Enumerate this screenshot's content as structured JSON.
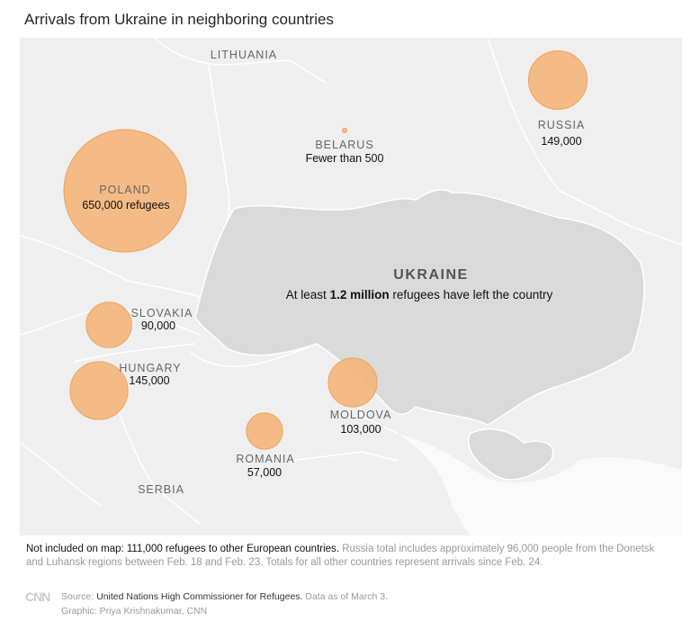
{
  "title": "Arrivals from Ukraine in neighboring countries",
  "map": {
    "colors": {
      "land": "#efefef",
      "ukraine": "#dadada",
      "border": "#ffffff",
      "bubble_fill": "#f5b57a",
      "bubble_stroke": "#eea25c"
    },
    "other_labels": {
      "lithuania": "LITHUANIA",
      "serbia": "SERBIA"
    },
    "ukraine": {
      "name": "UKRAINE",
      "note_prefix": "At least ",
      "note_bold": "1.2 million",
      "note_suffix": " refugees have left the country"
    },
    "countries": [
      {
        "name": "POLAND",
        "value": "650,000 refugees",
        "refugees": 650000
      },
      {
        "name": "RUSSIA",
        "value": "149,000",
        "refugees": 149000
      },
      {
        "name": "BELARUS",
        "value": "Fewer than 500",
        "refugees": 500
      },
      {
        "name": "SLOVAKIA",
        "value": "90,000",
        "refugees": 90000
      },
      {
        "name": "HUNGARY",
        "value": "145,000",
        "refugees": 145000
      },
      {
        "name": "MOLDOVA",
        "value": "103,000",
        "refugees": 103000
      },
      {
        "name": "ROMANIA",
        "value": "57,000",
        "refugees": 57000
      }
    ]
  },
  "footer": {
    "note_bold": "Not included on map: 111,000 refugees to other European countries.",
    "note_rest": " Russia total includes approximately 96,000 people from the Donetsk and Luhansk regions between Feb. 18 and Feb. 23. Totals for all other countries represent arrivals since Feb. 24.",
    "logo": "CNN",
    "source_label": "Source: ",
    "source": "United Nations High Commissioner for Refugees.",
    "source_date": " Data as of March 3.",
    "credit": "Graphic: Priya Krishnakumar, CNN"
  }
}
